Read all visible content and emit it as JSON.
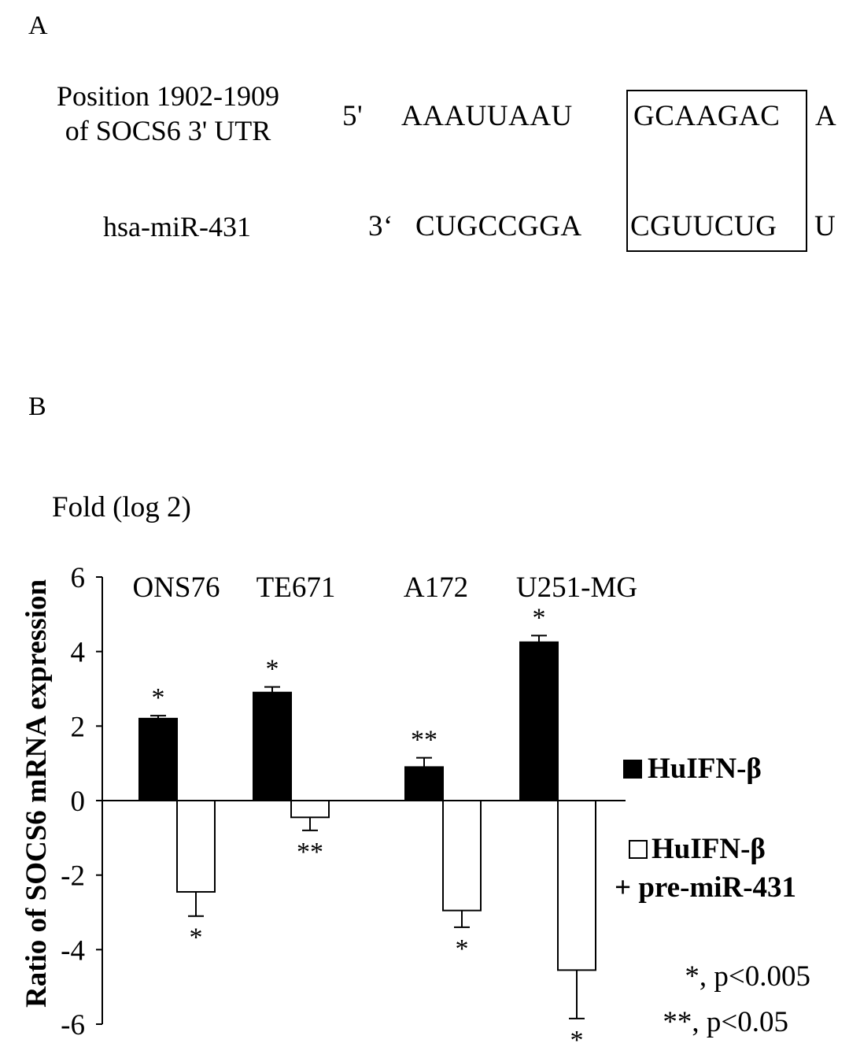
{
  "panel_a": {
    "letter": "A",
    "utr_label_line1": "Position 1902-1909",
    "utr_label_line2": "of SOCS6 3' UTR",
    "mir_label": "hsa-miR-431",
    "utr_end": "5'",
    "mir_end": "3‘",
    "utr_seq_left": "AAAUUAAU",
    "utr_seq_seed": "GCAAGAC",
    "utr_seq_right": "A",
    "mir_seq_left": "CUGCCGGA",
    "mir_seq_seed": "CGUUCUG",
    "mir_seq_right": "U"
  },
  "panel_b": {
    "letter": "B",
    "fold_label": "Fold (log 2)",
    "significance_notes": [
      "*, p<0.005",
      "**, p<0.05"
    ]
  },
  "chart_data": {
    "type": "bar",
    "categories": [
      "ONS76",
      "TE671",
      "A172",
      "U251-MG"
    ],
    "ylabel": "Ratio of SOCS6 mRNA expression",
    "ylim": [
      -6,
      6
    ],
    "yticks": [
      6,
      4,
      2,
      0,
      -2,
      -4,
      -6
    ],
    "grid": false,
    "legend_position": "right",
    "series": [
      {
        "name": "HuIFN-β",
        "legend_label_line1": "HuIFN-β",
        "fill": "#000000",
        "values": [
          2.2,
          2.9,
          0.9,
          4.25
        ],
        "errors": [
          0.08,
          0.15,
          0.25,
          0.18
        ],
        "significance": [
          "*",
          "*",
          "**",
          "*"
        ]
      },
      {
        "name": "HuIFN-β + pre-miR-431",
        "legend_label_line1": "HuIFN-β",
        "legend_label_line2": "+ pre-miR-431",
        "fill": "#ffffff",
        "values": [
          -2.45,
          -0.45,
          -2.95,
          -4.55
        ],
        "errors": [
          0.65,
          0.35,
          0.45,
          1.3
        ],
        "significance": [
          "*",
          "**",
          "*",
          "*"
        ]
      }
    ]
  }
}
